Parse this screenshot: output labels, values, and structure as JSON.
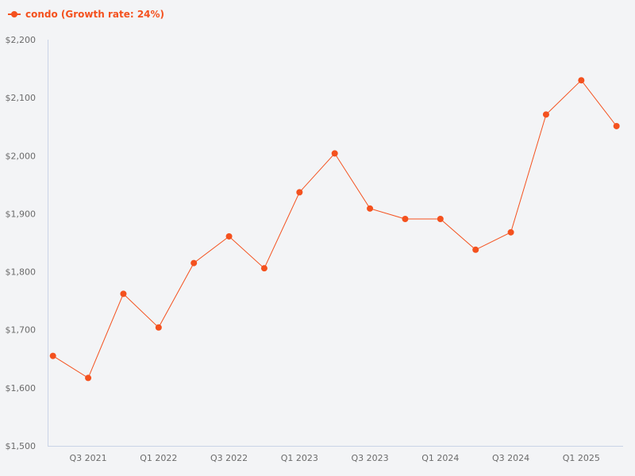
{
  "chart_data": {
    "type": "line",
    "title": "",
    "xlabel": "",
    "ylabel": "",
    "legend_position": "top-left",
    "grid": false,
    "series": [
      {
        "name": "condo (Growth rate: 24%)",
        "color": "#f4511e",
        "values": [
          1655,
          1617,
          1762,
          1704,
          1815,
          1861,
          1806,
          1937,
          2004,
          1909,
          1891,
          1891,
          1838,
          1868,
          2071,
          2130,
          2051
        ]
      }
    ],
    "categories": [
      "Q2 2021",
      "Q3 2021",
      "Q4 2021",
      "Q1 2022",
      "Q2 2022",
      "Q3 2022",
      "Q4 2022",
      "Q1 2023",
      "Q2 2023",
      "Q3 2023",
      "Q4 2023",
      "Q1 2024",
      "Q2 2024",
      "Q3 2024",
      "Q4 2024",
      "Q1 2025",
      "Q2 2025"
    ],
    "x_tick_labels": [
      "Q3 2021",
      "Q1 2022",
      "Q3 2022",
      "Q1 2023",
      "Q3 2023",
      "Q1 2024",
      "Q3 2024",
      "Q1 2025"
    ],
    "y_tick_labels": [
      "$1,500",
      "$1,600",
      "$1,700",
      "$1,800",
      "$1,900",
      "$2,000",
      "$2,100",
      "$2,200"
    ],
    "ylim": [
      1500,
      2200
    ]
  },
  "legend": {
    "label": "condo (Growth rate: 24%)",
    "color": "#f4511e"
  },
  "colors": {
    "background": "#f3f4f6",
    "axis": "#c9d3e6",
    "tick_text": "#6b6b6b"
  }
}
